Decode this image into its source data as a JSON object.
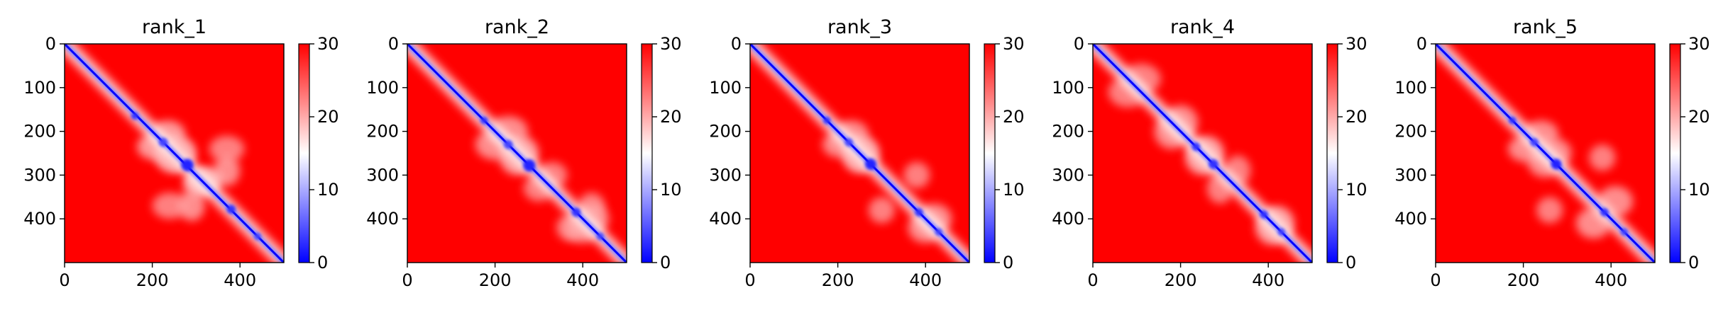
{
  "chart_data": [
    {
      "type": "heatmap",
      "title": "rank_1",
      "xlabel": "",
      "ylabel": "",
      "xlim": [
        0,
        500
      ],
      "ylim": [
        500,
        0
      ],
      "x_ticks": [
        0,
        200,
        400
      ],
      "y_ticks": [
        0,
        100,
        200,
        300,
        400
      ],
      "colorbar": {
        "cmap": "bwr",
        "range": [
          0,
          30
        ],
        "ticks": [
          0,
          10,
          20,
          30
        ]
      },
      "features": {
        "diagonal": true,
        "domains": [
          {
            "x": 160,
            "y": 165,
            "r": 8,
            "v": 3
          },
          {
            "x": 225,
            "y": 225,
            "r": 10,
            "v": 4
          },
          {
            "x": 280,
            "y": 277,
            "r": 14,
            "v": 2
          },
          {
            "x": 380,
            "y": 378,
            "r": 10,
            "v": 3
          },
          {
            "x": 440,
            "y": 440,
            "r": 8,
            "v": 4
          }
        ],
        "light_regions": [
          {
            "x": 205,
            "y": 235,
            "rx": 40,
            "ry": 30,
            "v": 18
          },
          {
            "x": 250,
            "y": 255,
            "rx": 45,
            "ry": 40,
            "v": 19
          },
          {
            "x": 370,
            "y": 290,
            "rx": 30,
            "ry": 35,
            "v": 19
          },
          {
            "x": 240,
            "y": 370,
            "rx": 40,
            "ry": 30,
            "v": 20
          },
          {
            "x": 310,
            "y": 320,
            "rx": 40,
            "ry": 30,
            "v": 18
          }
        ]
      }
    },
    {
      "type": "heatmap",
      "title": "rank_2",
      "xlabel": "",
      "ylabel": "",
      "xlim": [
        0,
        500
      ],
      "ylim": [
        500,
        0
      ],
      "x_ticks": [
        0,
        200,
        400
      ],
      "y_ticks": [
        0,
        100,
        200,
        300,
        400
      ],
      "colorbar": {
        "cmap": "bwr",
        "range": [
          0,
          30
        ],
        "ticks": [
          0,
          10,
          20,
          30
        ]
      },
      "features": {
        "diagonal": true,
        "domains": [
          {
            "x": 175,
            "y": 175,
            "r": 8,
            "v": 3
          },
          {
            "x": 230,
            "y": 230,
            "r": 10,
            "v": 4
          },
          {
            "x": 278,
            "y": 278,
            "r": 14,
            "v": 2
          },
          {
            "x": 385,
            "y": 385,
            "r": 10,
            "v": 3
          },
          {
            "x": 440,
            "y": 440,
            "r": 8,
            "v": 4
          }
        ],
        "light_regions": [
          {
            "x": 200,
            "y": 230,
            "rx": 45,
            "ry": 35,
            "v": 19
          },
          {
            "x": 250,
            "y": 260,
            "rx": 40,
            "ry": 40,
            "v": 19
          },
          {
            "x": 330,
            "y": 300,
            "rx": 35,
            "ry": 30,
            "v": 20
          },
          {
            "x": 420,
            "y": 400,
            "rx": 40,
            "ry": 35,
            "v": 19
          },
          {
            "x": 370,
            "y": 420,
            "rx": 30,
            "ry": 30,
            "v": 20
          }
        ]
      }
    },
    {
      "type": "heatmap",
      "title": "rank_3",
      "xlabel": "",
      "ylabel": "",
      "xlim": [
        0,
        500
      ],
      "ylim": [
        500,
        0
      ],
      "x_ticks": [
        0,
        200,
        400
      ],
      "y_ticks": [
        0,
        100,
        200,
        300,
        400
      ],
      "colorbar": {
        "cmap": "bwr",
        "range": [
          0,
          30
        ],
        "ticks": [
          0,
          10,
          20,
          30
        ]
      },
      "features": {
        "diagonal": true,
        "domains": [
          {
            "x": 175,
            "y": 175,
            "r": 8,
            "v": 3
          },
          {
            "x": 225,
            "y": 225,
            "r": 9,
            "v": 4
          },
          {
            "x": 275,
            "y": 275,
            "r": 13,
            "v": 2
          },
          {
            "x": 385,
            "y": 385,
            "r": 9,
            "v": 3
          },
          {
            "x": 430,
            "y": 430,
            "r": 8,
            "v": 4
          }
        ],
        "light_regions": [
          {
            "x": 205,
            "y": 230,
            "rx": 40,
            "ry": 30,
            "v": 19
          },
          {
            "x": 250,
            "y": 255,
            "rx": 40,
            "ry": 40,
            "v": 19
          },
          {
            "x": 380,
            "y": 300,
            "rx": 30,
            "ry": 30,
            "v": 20
          },
          {
            "x": 420,
            "y": 400,
            "rx": 40,
            "ry": 35,
            "v": 19
          }
        ]
      }
    },
    {
      "type": "heatmap",
      "title": "rank_4",
      "xlabel": "",
      "ylabel": "",
      "xlim": [
        0,
        500
      ],
      "ylim": [
        500,
        0
      ],
      "x_ticks": [
        0,
        200,
        400
      ],
      "y_ticks": [
        0,
        100,
        200,
        300,
        400
      ],
      "colorbar": {
        "cmap": "bwr",
        "range": [
          0,
          30
        ],
        "ticks": [
          0,
          10,
          20,
          30
        ]
      },
      "features": {
        "diagonal": true,
        "domains": [
          {
            "x": 235,
            "y": 235,
            "r": 9,
            "v": 3
          },
          {
            "x": 275,
            "y": 275,
            "r": 11,
            "v": 3
          },
          {
            "x": 390,
            "y": 390,
            "r": 9,
            "v": 3
          },
          {
            "x": 430,
            "y": 430,
            "r": 8,
            "v": 4
          }
        ],
        "light_regions": [
          {
            "x": 80,
            "y": 110,
            "rx": 45,
            "ry": 35,
            "v": 20
          },
          {
            "x": 180,
            "y": 200,
            "rx": 40,
            "ry": 40,
            "v": 19
          },
          {
            "x": 250,
            "y": 260,
            "rx": 40,
            "ry": 40,
            "v": 19
          },
          {
            "x": 330,
            "y": 290,
            "rx": 30,
            "ry": 35,
            "v": 20
          },
          {
            "x": 420,
            "y": 410,
            "rx": 40,
            "ry": 40,
            "v": 19
          }
        ]
      }
    },
    {
      "type": "heatmap",
      "title": "rank_5",
      "xlabel": "",
      "ylabel": "",
      "xlim": [
        0,
        500
      ],
      "ylim": [
        500,
        0
      ],
      "x_ticks": [
        0,
        200,
        400
      ],
      "y_ticks": [
        0,
        100,
        200,
        300,
        400
      ],
      "colorbar": {
        "cmap": "bwr",
        "range": [
          0,
          30
        ],
        "ticks": [
          0,
          10,
          20,
          30
        ]
      },
      "features": {
        "diagonal": true,
        "domains": [
          {
            "x": 175,
            "y": 175,
            "r": 8,
            "v": 3
          },
          {
            "x": 225,
            "y": 225,
            "r": 9,
            "v": 4
          },
          {
            "x": 275,
            "y": 275,
            "r": 12,
            "v": 2
          },
          {
            "x": 385,
            "y": 385,
            "r": 9,
            "v": 3
          },
          {
            "x": 430,
            "y": 430,
            "r": 8,
            "v": 4
          }
        ],
        "light_regions": [
          {
            "x": 205,
            "y": 240,
            "rx": 40,
            "ry": 30,
            "v": 19
          },
          {
            "x": 250,
            "y": 270,
            "rx": 40,
            "ry": 35,
            "v": 19
          },
          {
            "x": 380,
            "y": 260,
            "rx": 30,
            "ry": 30,
            "v": 20
          },
          {
            "x": 360,
            "y": 410,
            "rx": 40,
            "ry": 35,
            "v": 19
          }
        ]
      }
    }
  ]
}
